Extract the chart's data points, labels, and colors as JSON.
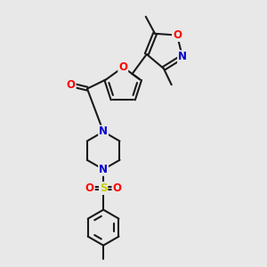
{
  "background_color": "#e8e8e8",
  "bond_color": "#1a1a1a",
  "bond_width": 1.5,
  "atom_colors": {
    "O": "#ff0000",
    "N": "#0000cc",
    "S": "#cccc00",
    "C": "#1a1a1a"
  },
  "font_size_atoms": 8.5,
  "font_size_methyl": 7.5
}
